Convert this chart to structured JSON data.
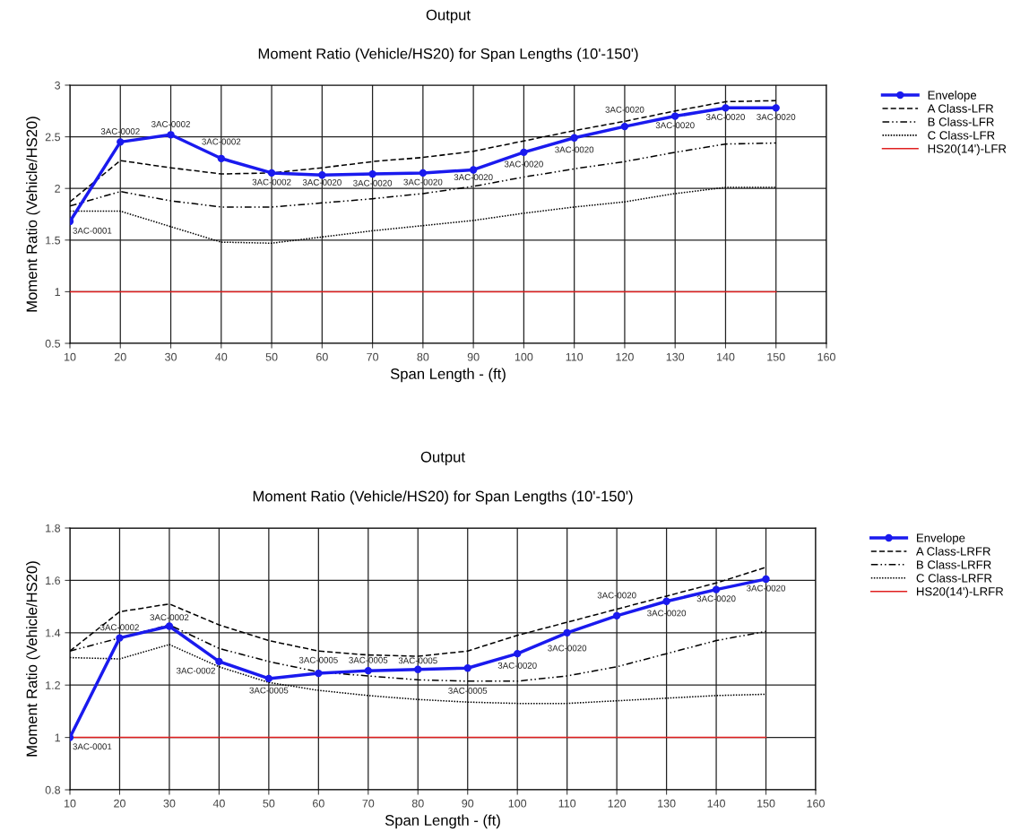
{
  "chart_data": [
    {
      "type": "line",
      "title": "Output",
      "subtitle": "Moment Ratio (Vehicle/HS20) for Span Lengths (10'-150')",
      "xlabel": "Span Length - (ft)",
      "ylabel": "Moment Ratio (Vehicle/HS20)",
      "x": [
        10,
        20,
        30,
        40,
        50,
        60,
        70,
        80,
        90,
        100,
        110,
        120,
        130,
        140,
        150
      ],
      "series": [
        {
          "name": "Envelope",
          "color": "#1a1aee",
          "marker": "circle",
          "line_style": "solid",
          "values": [
            1.68,
            2.45,
            2.52,
            2.29,
            2.15,
            2.13,
            2.14,
            2.15,
            2.18,
            2.35,
            2.49,
            2.6,
            2.7,
            2.78,
            2.78
          ]
        },
        {
          "name": "A Class-LFR",
          "color": "#000000",
          "marker": "none",
          "line_style": "dashed",
          "values": [
            1.87,
            2.27,
            2.2,
            2.14,
            2.15,
            2.2,
            2.26,
            2.3,
            2.36,
            2.46,
            2.56,
            2.65,
            2.75,
            2.84,
            2.85
          ]
        },
        {
          "name": "B Class-LFR",
          "color": "#000000",
          "marker": "none",
          "line_style": "dashdot",
          "values": [
            1.83,
            1.97,
            1.88,
            1.82,
            1.82,
            1.86,
            1.9,
            1.95,
            2.02,
            2.11,
            2.19,
            2.26,
            2.35,
            2.43,
            2.44
          ]
        },
        {
          "name": "C Class-LFR",
          "color": "#000000",
          "marker": "none",
          "line_style": "dotted",
          "values": [
            1.78,
            1.78,
            1.63,
            1.48,
            1.47,
            1.53,
            1.59,
            1.64,
            1.69,
            1.76,
            1.82,
            1.87,
            1.95,
            2.01,
            2.01
          ]
        },
        {
          "name": "HS20(14')-LFR",
          "color": "#e02020",
          "marker": "none",
          "line_style": "solid",
          "values": [
            1,
            1,
            1,
            1,
            1,
            1,
            1,
            1,
            1,
            1,
            1,
            1,
            1,
            1,
            1
          ]
        }
      ],
      "annotations": [
        {
          "text": "3AC-0001",
          "x": 10,
          "y": 1.68
        },
        {
          "text": "3AC-0002",
          "x": 20,
          "y": 2.45
        },
        {
          "text": "3AC-0002",
          "x": 30,
          "y": 2.52
        },
        {
          "text": "3AC-0002",
          "x": 40,
          "y": 2.29
        },
        {
          "text": "3AC-0002",
          "x": 50,
          "y": 2.15
        },
        {
          "text": "3AC-0020",
          "x": 60,
          "y": 2.13
        },
        {
          "text": "3AC-0020",
          "x": 70,
          "y": 2.14
        },
        {
          "text": "3AC-0020",
          "x": 80,
          "y": 2.15
        },
        {
          "text": "3AC-0020",
          "x": 90,
          "y": 2.18
        },
        {
          "text": "3AC-0020",
          "x": 100,
          "y": 2.35
        },
        {
          "text": "3AC-0020",
          "x": 110,
          "y": 2.49
        },
        {
          "text": "3AC-0020",
          "x": 120,
          "y": 2.6
        },
        {
          "text": "3AC-0020",
          "x": 130,
          "y": 2.7
        },
        {
          "text": "3AC-0020",
          "x": 140,
          "y": 2.78
        },
        {
          "text": "3AC-0020",
          "x": 150,
          "y": 2.78
        }
      ],
      "xlim": [
        10,
        160
      ],
      "xticks": [
        10,
        20,
        30,
        40,
        50,
        60,
        70,
        80,
        90,
        100,
        110,
        120,
        130,
        140,
        150,
        160
      ],
      "ylim": [
        0.5,
        3
      ],
      "yticks": [
        0.5,
        1,
        1.5,
        2,
        2.5,
        3
      ],
      "grid": true,
      "legend": "top right"
    },
    {
      "type": "line",
      "title": "Output",
      "subtitle": "Moment Ratio (Vehicle/HS20) for Span Lengths (10'-150')",
      "xlabel": "Span Length - (ft)",
      "ylabel": "Moment Ratio (Vehicle/HS20)",
      "x": [
        10,
        20,
        30,
        40,
        50,
        60,
        70,
        80,
        90,
        100,
        110,
        120,
        130,
        140,
        150
      ],
      "series": [
        {
          "name": "Envelope",
          "color": "#1a1aee",
          "marker": "circle",
          "line_style": "solid",
          "values": [
            1.0,
            1.38,
            1.425,
            1.29,
            1.225,
            1.245,
            1.255,
            1.26,
            1.265,
            1.32,
            1.4,
            1.465,
            1.52,
            1.565,
            1.605
          ]
        },
        {
          "name": "A Class-LRFR",
          "color": "#000000",
          "marker": "none",
          "line_style": "dashed",
          "values": [
            1.33,
            1.48,
            1.51,
            1.43,
            1.37,
            1.33,
            1.315,
            1.31,
            1.33,
            1.39,
            1.44,
            1.49,
            1.54,
            1.59,
            1.65
          ]
        },
        {
          "name": "B Class-LRFR",
          "color": "#000000",
          "marker": "none",
          "line_style": "dashdot",
          "values": [
            1.33,
            1.38,
            1.43,
            1.34,
            1.29,
            1.25,
            1.235,
            1.22,
            1.215,
            1.215,
            1.235,
            1.27,
            1.32,
            1.37,
            1.405
          ]
        },
        {
          "name": "C Class-LRFR",
          "color": "#000000",
          "marker": "none",
          "line_style": "dotted",
          "values": [
            1.305,
            1.3,
            1.355,
            1.27,
            1.21,
            1.18,
            1.16,
            1.145,
            1.135,
            1.13,
            1.13,
            1.14,
            1.15,
            1.16,
            1.165
          ]
        },
        {
          "name": "HS20(14')-LRFR",
          "color": "#e02020",
          "marker": "none",
          "line_style": "solid",
          "values": [
            1,
            1,
            1,
            1,
            1,
            1,
            1,
            1,
            1,
            1,
            1,
            1,
            1,
            1,
            1
          ]
        }
      ],
      "annotations": [
        {
          "text": "3AC-0001",
          "x": 10,
          "y": 1.0
        },
        {
          "text": "3AC-0002",
          "x": 20,
          "y": 1.38
        },
        {
          "text": "3AC-0002",
          "x": 30,
          "y": 1.425
        },
        {
          "text": "3AC-0002",
          "x": 40,
          "y": 1.29
        },
        {
          "text": "3AC-0005",
          "x": 50,
          "y": 1.225
        },
        {
          "text": "3AC-0005",
          "x": 60,
          "y": 1.245
        },
        {
          "text": "3AC-0005",
          "x": 70,
          "y": 1.255
        },
        {
          "text": "3AC-0005",
          "x": 80,
          "y": 1.26
        },
        {
          "text": "3AC-0005",
          "x": 90,
          "y": 1.265
        },
        {
          "text": "3AC-0020",
          "x": 100,
          "y": 1.32
        },
        {
          "text": "3AC-0020",
          "x": 110,
          "y": 1.4
        },
        {
          "text": "3AC-0020",
          "x": 120,
          "y": 1.465
        },
        {
          "text": "3AC-0020",
          "x": 130,
          "y": 1.52
        },
        {
          "text": "3AC-0020",
          "x": 140,
          "y": 1.565
        },
        {
          "text": "3AC-0020",
          "x": 150,
          "y": 1.605
        }
      ],
      "xlim": [
        10,
        160
      ],
      "xticks": [
        10,
        20,
        30,
        40,
        50,
        60,
        70,
        80,
        90,
        100,
        110,
        120,
        130,
        140,
        150,
        160
      ],
      "ylim": [
        0.8,
        1.8
      ],
      "yticks": [
        0.8,
        1,
        1.2,
        1.4,
        1.6,
        1.8
      ],
      "grid": true,
      "legend": "top right"
    }
  ]
}
